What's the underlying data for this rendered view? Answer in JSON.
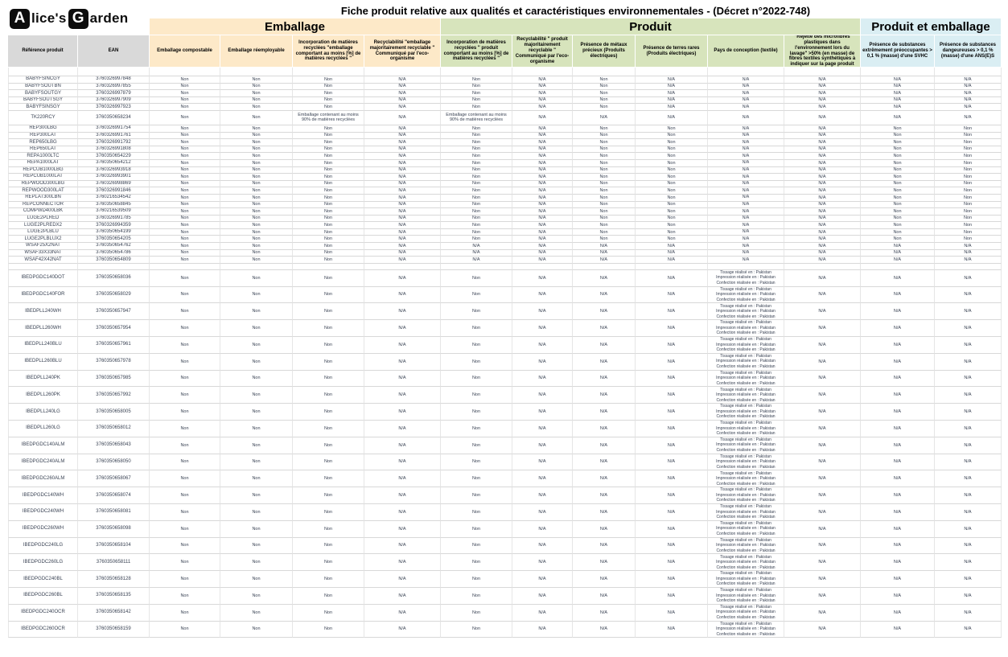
{
  "logo": {
    "a": "A",
    "lice": "lice's",
    "g": "G",
    "arden": "arden"
  },
  "title": "Fiche produit relative aux qualités et caractéristiques environnementales - (Décret n°2022-748)",
  "groups": {
    "emballage": "Emballage",
    "produit": "Produit",
    "produit_emballage": "Produit et emballage"
  },
  "colors": {
    "emballage_bg": "#FDE9C8",
    "produit_bg": "#D7E4BC",
    "produit_emballage_bg": "#DAEEF3",
    "ref_header_bg": "#D9D9D9",
    "data_text": "#3A4354"
  },
  "columns": [
    {
      "label": "Référence produit",
      "group": "gray"
    },
    {
      "label": "EAN",
      "group": "gray"
    },
    {
      "label": "Emballage compostable",
      "group": "yellow"
    },
    {
      "label": "Emballage réemployable",
      "group": "yellow"
    },
    {
      "label": "Incorporation de matières recyclées \"emballage comportant au moins [%] de matières recyclées \"",
      "group": "yellow"
    },
    {
      "label": "Recyclabilité \"emballage majoritairement recyclable \" Communiqué par l'eco-organisme",
      "group": "yellow"
    },
    {
      "label": "Incorporation de matières recyclées \" produit comportant au moins [%] de matières recyclées \"",
      "group": "green"
    },
    {
      "label": "Recyclabilité \" produit majoritairement recyclable \" Communiqué par l'eco-organisme",
      "group": "green"
    },
    {
      "label": "Présence de métaux précieux (Produits électriques)",
      "group": "green"
    },
    {
      "label": "Présence de terres rares (Produits électriques)",
      "group": "green"
    },
    {
      "label": "Pays de conception (textile)",
      "group": "green"
    },
    {
      "label": "\"Rejette des microfibres plastiques dans l'environnement lors du lavage\" >50% (en masse) de fibres textiles synthétiques à indiquer sur la page produit",
      "group": "green"
    },
    {
      "label": "Présence de substances extrêmement préoccupantes > 0,1 % (masse)  d'une SVHC",
      "group": "blue"
    },
    {
      "label": "Présence de substances dangeureuses > 0,1 % (masse)  d'une ANS(E)S",
      "group": "blue"
    }
  ],
  "table": {
    "patterns": {
      "blank": [
        "",
        "",
        "",
        "",
        "",
        "",
        "",
        "",
        "",
        "",
        "",
        ""
      ],
      "baby": [
        "Non",
        "Non",
        "Non",
        "N/A",
        "Non",
        "N/A",
        "Non",
        "N/A",
        "N/A",
        "N/A",
        "N/A",
        "N/A"
      ],
      "tk": [
        "Non",
        "Non",
        "Emballage contenant au moins 90% de matières recyclées",
        "N/A",
        "Emballage contenant au moins 90% de matières recyclées",
        "N/A",
        "N/A",
        "N/A",
        "N/A",
        "N/A",
        "N/A",
        "N/A"
      ],
      "rep": [
        "Non",
        "Non",
        "Non",
        "N/A",
        "Non",
        "N/A",
        "Non",
        "Non",
        "N/A",
        "N/A",
        "Non",
        "Non"
      ],
      "wsaf": [
        "Non",
        "Non",
        "Non",
        "N/A",
        "N/A",
        "N/A",
        "N/A",
        "N/A",
        "N/A",
        "N/A",
        "N/A",
        "N/A"
      ],
      "ibed": [
        "Non",
        "Non",
        "Non",
        "N/A",
        "Non",
        "N/A",
        "N/A",
        "N/A",
        "Tissage réalisé en : Pakistan\nImpression réalisée en : Pakistan\nConfection réalisée en : Pakistan",
        "N/A",
        "N/A",
        "N/A"
      ]
    },
    "rows": [
      {
        "ref": "",
        "ean": "",
        "pattern": "blank",
        "size": "b1"
      },
      {
        "ref": "BABYFSINCGY",
        "ean": "3760326997848",
        "pattern": "baby",
        "size": "s"
      },
      {
        "ref": "BABYFSOUTBN",
        "ean": "3760326997855",
        "pattern": "baby",
        "size": "s"
      },
      {
        "ref": "BABYFSOUTGY",
        "ean": "3760326997879",
        "pattern": "baby",
        "size": "s"
      },
      {
        "ref": "BABYFSOUTSGY",
        "ean": "3760326997909",
        "pattern": "baby",
        "size": "s"
      },
      {
        "ref": "BABYFSINSGY",
        "ean": "3760326997923",
        "pattern": "baby",
        "size": "s"
      },
      {
        "ref": "TK220RCY",
        "ean": "3760350658234",
        "pattern": "tk",
        "size": "m"
      },
      {
        "ref": "REP300LBG",
        "ean": "3760326991754",
        "pattern": "rep",
        "size": "s"
      },
      {
        "ref": "REP300LAT",
        "ean": "3760326991761",
        "pattern": "rep",
        "size": "s"
      },
      {
        "ref": "REP650LBG",
        "ean": "3760326991792",
        "pattern": "rep",
        "size": "s"
      },
      {
        "ref": "REP650LAT",
        "ean": "3760326991808",
        "pattern": "rep",
        "size": "s"
      },
      {
        "ref": "REPA1000LTC",
        "ean": "3760350654229",
        "pattern": "rep",
        "size": "s"
      },
      {
        "ref": "REPA1000LAT",
        "ean": "3760350654212",
        "pattern": "rep",
        "size": "s"
      },
      {
        "ref": "REPCUB1000LBG",
        "ean": "3760326993918",
        "pattern": "rep",
        "size": "s"
      },
      {
        "ref": "REPCUB1000LAT",
        "ean": "3760326993901",
        "pattern": "rep",
        "size": "s"
      },
      {
        "ref": "REPWOOD300LBG",
        "ean": "3760326998869",
        "pattern": "rep",
        "size": "s"
      },
      {
        "ref": "REPWOOD300LAT",
        "ean": "3760326991846",
        "pattern": "rep",
        "size": "s"
      },
      {
        "ref": "REPLAT300LBN",
        "ean": "3760216534542",
        "pattern": "rep",
        "size": "s"
      },
      {
        "ref": "REPCONNECTOR",
        "ean": "3760350658845",
        "pattern": "rep",
        "size": "s"
      },
      {
        "ref": "COMPWD400LBK",
        "ean": "3760216539509",
        "pattern": "rep",
        "size": "s"
      },
      {
        "ref": "LUGE2PLRED",
        "ean": "3760326991785",
        "pattern": "rep",
        "size": "s"
      },
      {
        "ref": "LUGE2PLREDX2",
        "ean": "3760326994359",
        "pattern": "rep",
        "size": "s"
      },
      {
        "ref": "LUGE2PLBLU",
        "ean": "3760350654199",
        "pattern": "rep",
        "size": "s"
      },
      {
        "ref": "LUGE2PLBLUX2",
        "ean": "3760350654205",
        "pattern": "rep",
        "size": "s"
      },
      {
        "ref": "WSAF25X2NAT",
        "ean": "3760350654762",
        "pattern": "wsaf",
        "size": "s"
      },
      {
        "ref": "WSAF33X33NAT",
        "ean": "3760350654786",
        "pattern": "wsaf",
        "size": "s"
      },
      {
        "ref": "WSAF42X42NAT",
        "ean": "3760350654809",
        "pattern": "wsaf",
        "size": "s"
      },
      {
        "ref": "",
        "ean": "",
        "pattern": "blank",
        "size": "b2"
      },
      {
        "ref": "IBEDPGDC140DOT",
        "ean": "3760350658036",
        "pattern": "ibed",
        "size": "t"
      },
      {
        "ref": "IBEDPGDC140FOR",
        "ean": "3760350658029",
        "pattern": "ibed",
        "size": "t"
      },
      {
        "ref": "IBEDPLL240WH",
        "ean": "3760350657947",
        "pattern": "ibed",
        "size": "t"
      },
      {
        "ref": "IBEDPLL260WH",
        "ean": "3760350657954",
        "pattern": "ibed",
        "size": "t"
      },
      {
        "ref": "IBEDPLL240BLU",
        "ean": "3760350657961",
        "pattern": "ibed",
        "size": "t"
      },
      {
        "ref": "IBEDPLL260BLU",
        "ean": "3760350657978",
        "pattern": "ibed",
        "size": "t"
      },
      {
        "ref": "IBEDPLL240PK",
        "ean": "3760350657985",
        "pattern": "ibed",
        "size": "t"
      },
      {
        "ref": "IBEDPLL260PK",
        "ean": "3760350657992",
        "pattern": "ibed",
        "size": "t"
      },
      {
        "ref": "IBEDPLL240LG",
        "ean": "3760350658005",
        "pattern": "ibed",
        "size": "t"
      },
      {
        "ref": "IBEDPLL260LG",
        "ean": "3760350658012",
        "pattern": "ibed",
        "size": "t"
      },
      {
        "ref": "IBEDPGDC140ALM",
        "ean": "3760350658043",
        "pattern": "ibed",
        "size": "t"
      },
      {
        "ref": "IBEDPGDC240ALM",
        "ean": "3760350658050",
        "pattern": "ibed",
        "size": "t"
      },
      {
        "ref": "IBEDPGDC260ALM",
        "ean": "3760350658067",
        "pattern": "ibed",
        "size": "t"
      },
      {
        "ref": "IBEDPGDC140WH",
        "ean": "3760350658074",
        "pattern": "ibed",
        "size": "t"
      },
      {
        "ref": "IBEDPGDC240WH",
        "ean": "3760350658081",
        "pattern": "ibed",
        "size": "t"
      },
      {
        "ref": "IBEDPGDC260WH",
        "ean": "3760350658098",
        "pattern": "ibed",
        "size": "t"
      },
      {
        "ref": "IBEDPGDC240LG",
        "ean": "3760350658104",
        "pattern": "ibed",
        "size": "t"
      },
      {
        "ref": "IBEDPGDC260LG",
        "ean": "3760350658111",
        "pattern": "ibed",
        "size": "t"
      },
      {
        "ref": "IBEDPGDC240BL",
        "ean": "3760350658128",
        "pattern": "ibed",
        "size": "t"
      },
      {
        "ref": "IBEDPGDC260BL",
        "ean": "3760350658135",
        "pattern": "ibed",
        "size": "t"
      },
      {
        "ref": "IBEDPGDC240OCR",
        "ean": "3760350658142",
        "pattern": "ibed",
        "size": "t"
      },
      {
        "ref": "IBEDPGDC260OCR",
        "ean": "3760350658159",
        "pattern": "ibed",
        "size": "t"
      }
    ]
  }
}
